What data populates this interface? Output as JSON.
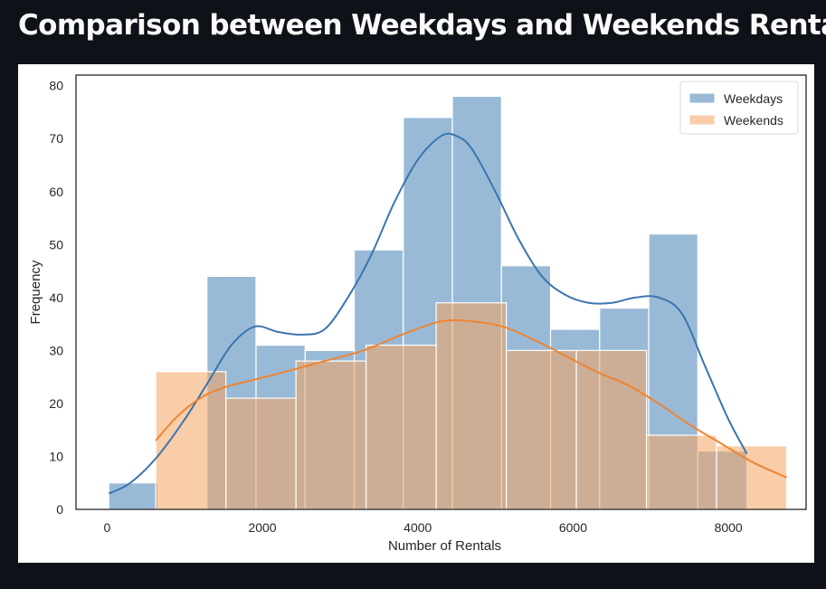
{
  "page": {
    "title": "Comparison between Weekdays and Weekends Rentals"
  },
  "chart_data": {
    "type": "histogram",
    "title": "",
    "xlabel": "Number of Rentals",
    "ylabel": "Frequency",
    "xlim": [
      -400,
      9000
    ],
    "ylim": [
      0,
      82
    ],
    "xticks": [
      0,
      2000,
      4000,
      6000,
      8000
    ],
    "yticks": [
      0,
      10,
      20,
      30,
      40,
      50,
      60,
      70,
      80
    ],
    "grid": false,
    "legend": "top-right",
    "series": [
      {
        "name": "Weekdays",
        "color": "#4682b4",
        "kde_color": "#3b75af",
        "bins": [
          [
            22,
            654,
            5
          ],
          [
            654,
            1286,
            0
          ],
          [
            1286,
            1918,
            44
          ],
          [
            1918,
            2550,
            31
          ],
          [
            2550,
            3182,
            30
          ],
          [
            3182,
            3814,
            49
          ],
          [
            3814,
            4446,
            74
          ],
          [
            4446,
            5078,
            78
          ],
          [
            5078,
            5710,
            46
          ],
          [
            5710,
            6342,
            34
          ],
          [
            6342,
            6974,
            38
          ],
          [
            6974,
            7606,
            52
          ],
          [
            7606,
            8238,
            11
          ]
        ],
        "kde": [
          [
            22,
            3
          ],
          [
            300,
            5
          ],
          [
            650,
            10
          ],
          [
            1000,
            17
          ],
          [
            1300,
            24
          ],
          [
            1600,
            31
          ],
          [
            1900,
            34.5
          ],
          [
            2200,
            33.5
          ],
          [
            2500,
            33
          ],
          [
            2800,
            34
          ],
          [
            3100,
            40
          ],
          [
            3400,
            48
          ],
          [
            3700,
            58
          ],
          [
            4000,
            66
          ],
          [
            4300,
            70.5
          ],
          [
            4500,
            70.5
          ],
          [
            4700,
            68
          ],
          [
            5000,
            60
          ],
          [
            5300,
            51
          ],
          [
            5600,
            44
          ],
          [
            5900,
            40.5
          ],
          [
            6200,
            39
          ],
          [
            6500,
            39
          ],
          [
            6800,
            40
          ],
          [
            7100,
            40
          ],
          [
            7400,
            37
          ],
          [
            7700,
            27
          ],
          [
            8000,
            17
          ],
          [
            8238,
            10.5
          ]
        ]
      },
      {
        "name": "Weekends",
        "color": "#f4a460",
        "kde_color": "#ef8432",
        "bins": [
          [
            627,
            1530,
            26
          ],
          [
            1530,
            2432,
            21
          ],
          [
            2432,
            3335,
            28
          ],
          [
            3335,
            4237,
            31
          ],
          [
            4237,
            5140,
            39
          ],
          [
            5140,
            6042,
            30
          ],
          [
            6042,
            6945,
            30
          ],
          [
            6945,
            7847,
            14
          ],
          [
            7847,
            8750,
            12
          ]
        ],
        "kde": [
          [
            627,
            13
          ],
          [
            900,
            17.5
          ],
          [
            1200,
            21
          ],
          [
            1500,
            23
          ],
          [
            1900,
            24.5
          ],
          [
            2300,
            26
          ],
          [
            2800,
            28
          ],
          [
            3300,
            30
          ],
          [
            3800,
            33
          ],
          [
            4300,
            35.5
          ],
          [
            4700,
            35.5
          ],
          [
            5100,
            34.5
          ],
          [
            5500,
            32
          ],
          [
            5900,
            29
          ],
          [
            6300,
            26
          ],
          [
            6700,
            23.5
          ],
          [
            7100,
            20
          ],
          [
            7500,
            16
          ],
          [
            7900,
            12.5
          ],
          [
            8300,
            9
          ],
          [
            8750,
            6
          ]
        ]
      }
    ]
  }
}
